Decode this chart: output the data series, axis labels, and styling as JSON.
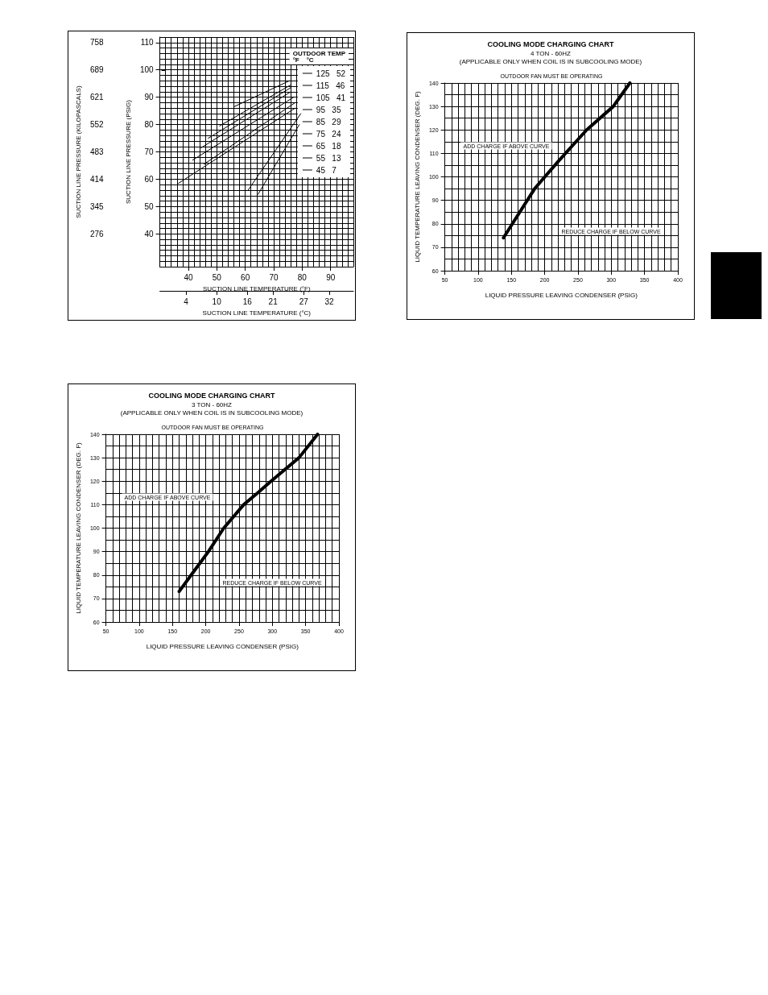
{
  "chart_data": [
    {
      "type": "line",
      "xlabel": "SUCTION LINE TEMPERATURE (°F)",
      "x2label": "SUCTION LINE TEMPERATURE (°C)",
      "ylabel": "SUCTION LINE PRESSURE (PSIG)",
      "y2label": "SUCTION LINE PRESSURE (KILOPASCALS)",
      "legend_title": "OUTDOOR TEMP\n°F    °C",
      "legend": "top right",
      "grid": true,
      "xlim": [
        30,
        98
      ],
      "xticks": [
        40,
        50,
        60,
        70,
        80,
        90
      ],
      "x2lim": [
        -1.1,
        36.7
      ],
      "x2ticks": [
        4,
        10,
        16,
        21,
        27,
        32
      ],
      "ylim": [
        28,
        112
      ],
      "yticks": [
        40,
        50,
        60,
        70,
        80,
        90,
        100,
        110
      ],
      "y2lim": [
        193,
        772
      ],
      "y2ticks": [
        276,
        345,
        414,
        483,
        552,
        621,
        689,
        758
      ],
      "series": [
        {
          "name": "125   52",
          "color": "#000000",
          "x": [
            56,
            75.5
          ],
          "values": [
            86.5,
            96
          ]
        },
        {
          "name": "115   46",
          "color": "#000000",
          "x": [
            51,
            76
          ],
          "values": [
            79.5,
            94.5
          ]
        },
        {
          "name": "105   41",
          "color": "#000000",
          "x": [
            47,
            76
          ],
          "values": [
            75,
            93.5
          ]
        },
        {
          "name": "95   35",
          "color": "#000000",
          "x": [
            44.5,
            76
          ],
          "values": [
            71.5,
            92
          ]
        },
        {
          "name": "85   29",
          "color": "#000000",
          "x": [
            41.5,
            77
          ],
          "values": [
            67,
            90
          ]
        },
        {
          "name": "75   24",
          "color": "#000000",
          "x": [
            45.5,
            77.5
          ],
          "values": [
            65.5,
            88
          ]
        },
        {
          "name": "65   18",
          "color": "#000000",
          "x": [
            36.5,
            77.5
          ],
          "values": [
            58.5,
            86
          ]
        },
        {
          "name": "55   13",
          "color": "#000000",
          "x": [
            61,
            79.5
          ],
          "values": [
            56,
            84
          ]
        },
        {
          "name": "45   7",
          "color": "#000000",
          "x": [
            64.5,
            79
          ],
          "values": [
            54.5,
            80
          ]
        }
      ]
    },
    {
      "type": "line",
      "title": "COOLING MODE CHARGING CHART",
      "subtitle": "4 TON - 60HZ\n(APPLICABLE ONLY WHEN COIL IS IN SUBCOOLING MODE)",
      "xlabel": "LIQUID PRESSURE LEAVING CONDENSER (PSIG)",
      "ylabel": "LIQUID TEMPERATURE LEAVING CONDENSER (DEG. F)",
      "grid": true,
      "xlim": [
        50,
        400
      ],
      "xticks": [
        50,
        100,
        150,
        200,
        250,
        300,
        350,
        400
      ],
      "ylim": [
        60,
        140
      ],
      "yticks": [
        60,
        70,
        80,
        90,
        100,
        110,
        120,
        130,
        140
      ],
      "annotations": [
        "OUTDOOR FAN MUST BE OPERATING",
        "ADD CHARGE IF ABOVE CURVE",
        "REDUCE CHARGE IF BELOW CURVE"
      ],
      "series": [
        {
          "color": "#000000",
          "x": [
            138,
            185,
            220,
            263,
            303,
            328
          ],
          "values": [
            74,
            95,
            106.5,
            120,
            130,
            140
          ]
        }
      ]
    },
    {
      "type": "line",
      "title": "COOLING MODE CHARGING CHART",
      "subtitle": "3 TON - 60HZ\n(APPLICABLE ONLY WHEN COIL IS IN SUBCOOLING MODE)",
      "xlabel": "LIQUID PRESSURE LEAVING CONDENSER (PSIG)",
      "ylabel": "LIQUID TEMPERATURE LEAVING CONDENSER (DEG. F)",
      "grid": true,
      "xlim": [
        50,
        400
      ],
      "xticks": [
        50,
        100,
        150,
        200,
        250,
        300,
        350,
        400
      ],
      "ylim": [
        60,
        140
      ],
      "yticks": [
        60,
        70,
        80,
        90,
        100,
        110,
        120,
        130,
        140
      ],
      "annotations": [
        "OUTDOOR FAN MUST BE OPERATING",
        "ADD CHARGE IF ABOVE CURVE",
        "REDUCE CHARGE IF BELOW CURVE"
      ],
      "series": [
        {
          "color": "#000000",
          "x": [
            160,
            178,
            204,
            227,
            257,
            278,
            298,
            340,
            368
          ],
          "values": [
            73,
            80,
            90,
            100,
            110,
            115,
            120,
            130,
            140
          ]
        }
      ]
    }
  ]
}
